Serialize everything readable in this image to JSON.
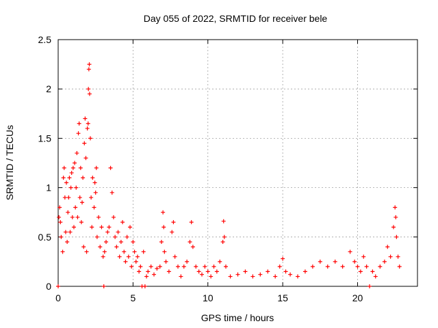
{
  "chart_data": {
    "type": "scatter",
    "title": "Day 055 of 2022, SRMTID for receiver bele",
    "xlabel": "GPS time / hours",
    "ylabel": "SRMTID / TECUs",
    "xlim": [
      0,
      24
    ],
    "ylim": [
      0,
      2.5
    ],
    "x_ticks": [
      0,
      5,
      10,
      15,
      20
    ],
    "x_tick_labels": [
      "0",
      "5",
      "10",
      "15",
      "20"
    ],
    "y_ticks": [
      0,
      0.5,
      1,
      1.5,
      2,
      2.5
    ],
    "y_tick_labels": [
      "0",
      "0.5",
      "1",
      "1.5",
      "2",
      "2.5"
    ],
    "grid": true,
    "marker": "+",
    "marker_color": "#ff0000",
    "series": [
      {
        "name": "SRMTID",
        "points": [
          [
            0.0,
            0.0
          ],
          [
            0.05,
            0.7
          ],
          [
            0.1,
            0.8
          ],
          [
            0.15,
            0.65
          ],
          [
            0.2,
            0.5
          ],
          [
            0.3,
            0.35
          ],
          [
            0.35,
            1.1
          ],
          [
            0.4,
            1.2
          ],
          [
            0.45,
            0.9
          ],
          [
            0.5,
            0.55
          ],
          [
            0.55,
            1.05
          ],
          [
            0.6,
            0.45
          ],
          [
            0.65,
            0.75
          ],
          [
            0.7,
            0.9
          ],
          [
            0.75,
            1.1
          ],
          [
            0.8,
            0.55
          ],
          [
            0.85,
            1.0
          ],
          [
            0.9,
            1.15
          ],
          [
            0.95,
            0.7
          ],
          [
            1.0,
            1.2
          ],
          [
            1.05,
            0.6
          ],
          [
            1.1,
            1.25
          ],
          [
            1.15,
            0.8
          ],
          [
            1.2,
            1.0
          ],
          [
            1.25,
            1.35
          ],
          [
            1.3,
            0.7
          ],
          [
            1.35,
            1.55
          ],
          [
            1.4,
            1.65
          ],
          [
            1.45,
            0.9
          ],
          [
            1.5,
            1.2
          ],
          [
            1.55,
            0.65
          ],
          [
            1.6,
            0.85
          ],
          [
            1.65,
            1.1
          ],
          [
            1.7,
            0.4
          ],
          [
            1.75,
            1.45
          ],
          [
            1.8,
            1.7
          ],
          [
            1.85,
            1.3
          ],
          [
            1.9,
            0.35
          ],
          [
            1.95,
            1.6
          ],
          [
            2.0,
            1.65
          ],
          [
            2.02,
            2.0
          ],
          [
            2.05,
            2.2
          ],
          [
            2.08,
            2.25
          ],
          [
            2.1,
            1.95
          ],
          [
            2.15,
            1.5
          ],
          [
            2.2,
            0.9
          ],
          [
            2.25,
            0.6
          ],
          [
            2.3,
            1.1
          ],
          [
            2.4,
            0.8
          ],
          [
            2.45,
            1.05
          ],
          [
            2.5,
            0.95
          ],
          [
            2.55,
            1.2
          ],
          [
            2.6,
            0.5
          ],
          [
            2.7,
            0.7
          ],
          [
            2.8,
            0.4
          ],
          [
            2.9,
            0.6
          ],
          [
            3.0,
            0.3
          ],
          [
            3.05,
            0.0
          ],
          [
            3.1,
            0.35
          ],
          [
            3.2,
            0.45
          ],
          [
            3.3,
            0.55
          ],
          [
            3.4,
            0.6
          ],
          [
            3.5,
            1.2
          ],
          [
            3.6,
            0.95
          ],
          [
            3.7,
            0.7
          ],
          [
            3.8,
            0.5
          ],
          [
            3.9,
            0.4
          ],
          [
            4.0,
            0.55
          ],
          [
            4.1,
            0.3
          ],
          [
            4.2,
            0.45
          ],
          [
            4.3,
            0.65
          ],
          [
            4.4,
            0.35
          ],
          [
            4.5,
            0.25
          ],
          [
            4.6,
            0.5
          ],
          [
            4.7,
            0.3
          ],
          [
            4.8,
            0.6
          ],
          [
            4.9,
            0.2
          ],
          [
            5.0,
            0.45
          ],
          [
            5.1,
            0.35
          ],
          [
            5.2,
            0.25
          ],
          [
            5.3,
            0.3
          ],
          [
            5.4,
            0.15
          ],
          [
            5.5,
            0.2
          ],
          [
            5.6,
            0.0
          ],
          [
            5.7,
            0.35
          ],
          [
            5.8,
            0.0
          ],
          [
            5.9,
            0.1
          ],
          [
            6.0,
            0.15
          ],
          [
            6.2,
            0.2
          ],
          [
            6.4,
            0.12
          ],
          [
            6.6,
            0.18
          ],
          [
            6.8,
            0.2
          ],
          [
            6.9,
            0.45
          ],
          [
            7.0,
            0.75
          ],
          [
            7.05,
            0.6
          ],
          [
            7.1,
            0.35
          ],
          [
            7.2,
            0.25
          ],
          [
            7.4,
            0.15
          ],
          [
            7.6,
            0.55
          ],
          [
            7.7,
            0.65
          ],
          [
            7.8,
            0.3
          ],
          [
            8.0,
            0.2
          ],
          [
            8.2,
            0.1
          ],
          [
            8.4,
            0.2
          ],
          [
            8.6,
            0.25
          ],
          [
            8.8,
            0.45
          ],
          [
            8.9,
            0.65
          ],
          [
            9.0,
            0.4
          ],
          [
            9.2,
            0.2
          ],
          [
            9.4,
            0.15
          ],
          [
            9.6,
            0.12
          ],
          [
            9.8,
            0.2
          ],
          [
            10.0,
            0.15
          ],
          [
            10.2,
            0.1
          ],
          [
            10.4,
            0.2
          ],
          [
            10.6,
            0.15
          ],
          [
            10.8,
            0.25
          ],
          [
            11.0,
            0.45
          ],
          [
            11.05,
            0.66
          ],
          [
            11.1,
            0.5
          ],
          [
            11.2,
            0.2
          ],
          [
            11.5,
            0.1
          ],
          [
            12.0,
            0.12
          ],
          [
            12.5,
            0.15
          ],
          [
            13.0,
            0.1
          ],
          [
            13.5,
            0.12
          ],
          [
            14.0,
            0.15
          ],
          [
            14.5,
            0.1
          ],
          [
            14.8,
            0.2
          ],
          [
            15.0,
            0.28
          ],
          [
            15.2,
            0.15
          ],
          [
            15.5,
            0.12
          ],
          [
            16.0,
            0.1
          ],
          [
            16.5,
            0.15
          ],
          [
            17.0,
            0.2
          ],
          [
            17.5,
            0.25
          ],
          [
            18.0,
            0.2
          ],
          [
            18.5,
            0.25
          ],
          [
            19.0,
            0.2
          ],
          [
            19.5,
            0.35
          ],
          [
            19.8,
            0.25
          ],
          [
            20.0,
            0.2
          ],
          [
            20.2,
            0.15
          ],
          [
            20.4,
            0.3
          ],
          [
            20.6,
            0.2
          ],
          [
            20.8,
            0.0
          ],
          [
            21.0,
            0.15
          ],
          [
            21.2,
            0.1
          ],
          [
            21.5,
            0.2
          ],
          [
            21.8,
            0.25
          ],
          [
            22.0,
            0.4
          ],
          [
            22.2,
            0.3
          ],
          [
            22.4,
            0.6
          ],
          [
            22.5,
            0.8
          ],
          [
            22.55,
            0.7
          ],
          [
            22.6,
            0.5
          ],
          [
            22.7,
            0.3
          ],
          [
            22.8,
            0.2
          ]
        ]
      }
    ]
  }
}
